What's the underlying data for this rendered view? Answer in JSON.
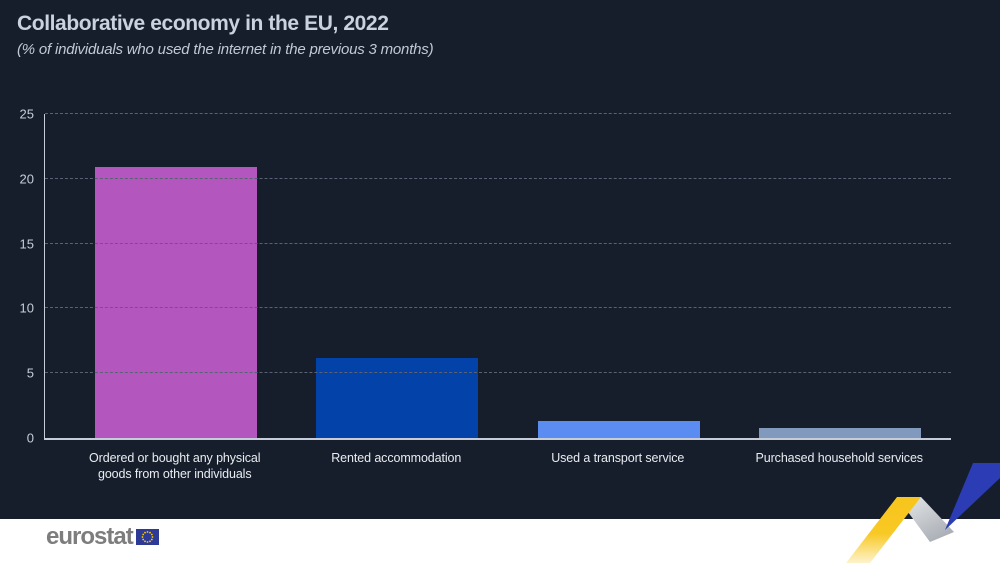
{
  "header": {
    "title": "Collaborative economy in the EU, 2022",
    "subtitle": "(% of individuals who used the internet in the previous 3 months)"
  },
  "chart_data": {
    "type": "bar",
    "title": "Collaborative economy in the EU, 2022",
    "subtitle": "(% of individuals who used the internet in the previous 3 months)",
    "categories": [
      "Ordered or bought any physical\ngoods from other individuals",
      "Rented accommodation",
      "Used a transport service",
      "Purchased household services"
    ],
    "values": [
      20.9,
      6.2,
      1.3,
      0.8
    ],
    "bar_colors": [
      "#b356bd",
      "#0342a8",
      "#5b8cf2",
      "#8199bc"
    ],
    "xlabel": "",
    "ylabel": "",
    "ylim": [
      0,
      25
    ],
    "yticks": [
      0,
      5,
      10,
      15,
      20,
      25
    ],
    "grid": "horizontal-dashed",
    "legend": "none"
  },
  "footer": {
    "logo_text": "eurostat"
  },
  "colors": {
    "panel_background": "#161e2b",
    "axis_line": "#c6cdd8",
    "gridline": "#596273",
    "tick_text": "#c6cdd8",
    "category_text": "#e9ecf1",
    "title_text": "#cad2df",
    "footer_background": "#ffffff",
    "logo_text": "#7d7d7d",
    "flag_blue": "#2d3b97",
    "flag_stars": "#ffcc00",
    "ribbon_yellow": "#f7c51c",
    "ribbon_gray": "#b3b8bf",
    "ribbon_blue": "#2b3cb4"
  }
}
